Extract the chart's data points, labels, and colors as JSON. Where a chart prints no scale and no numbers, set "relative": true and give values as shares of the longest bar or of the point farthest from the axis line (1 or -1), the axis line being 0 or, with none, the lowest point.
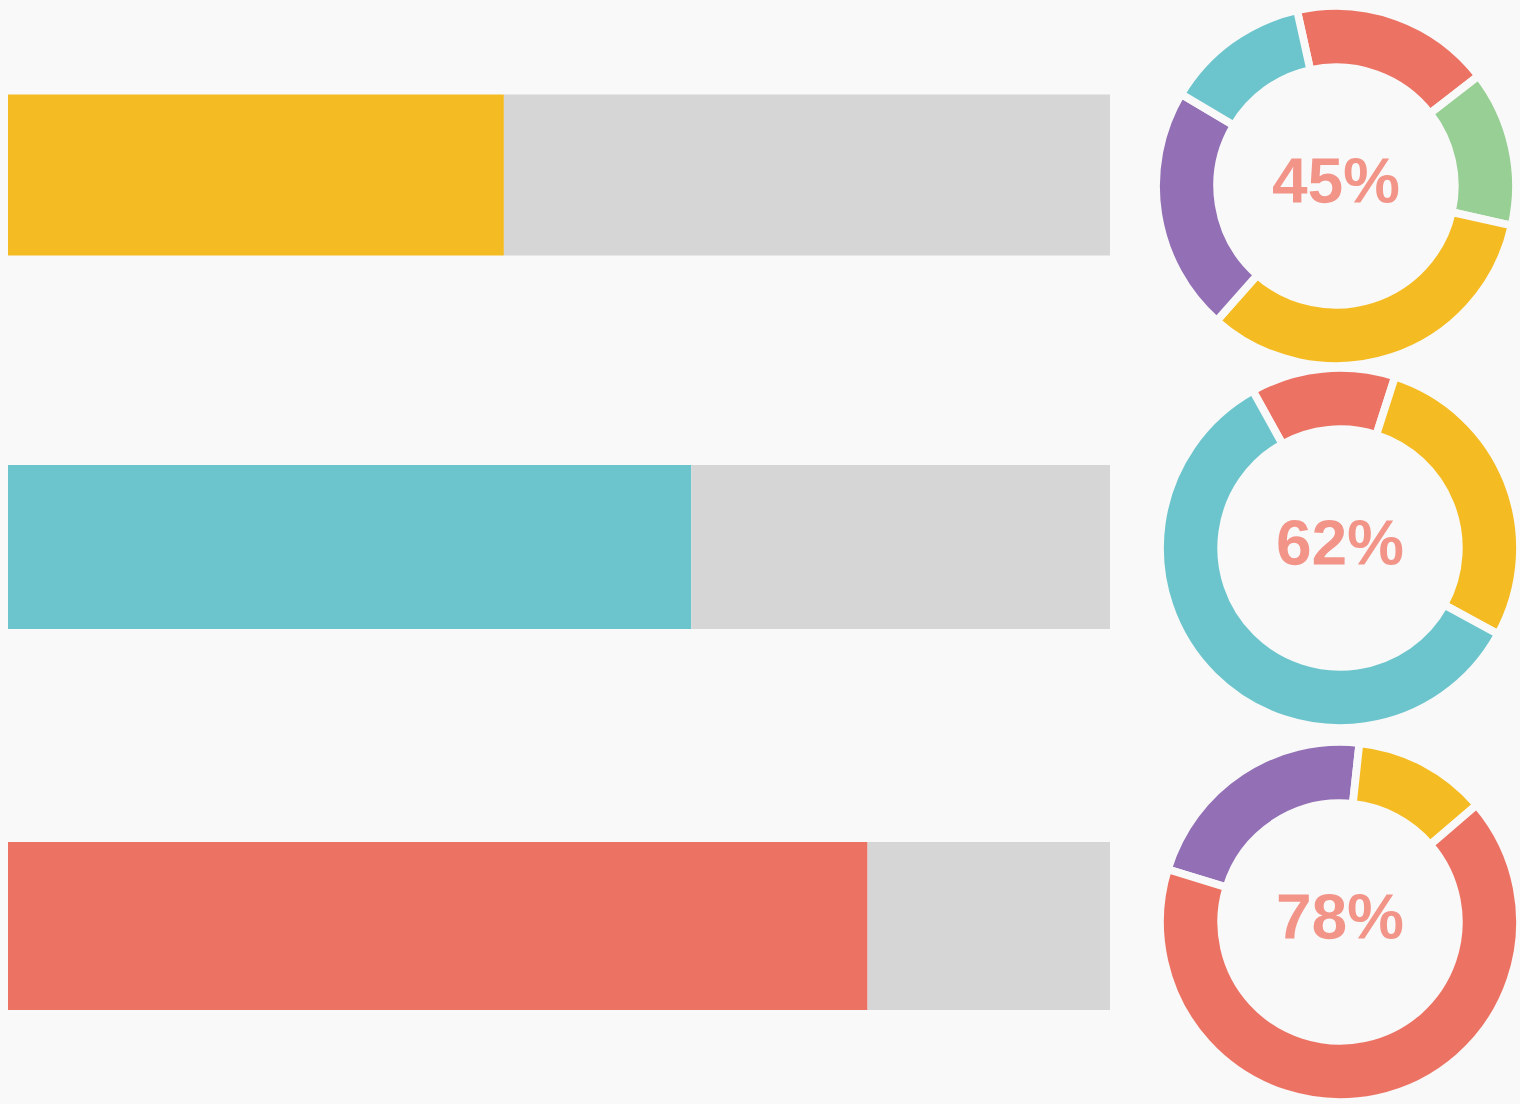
{
  "chart_data": [
    {
      "type": "bar",
      "orientation": "horizontal",
      "stacked": true,
      "relative": true,
      "tick_labels": false,
      "categories": [
        null
      ],
      "series": [
        {
          "color": "#f5bb22",
          "values": [
            0.45
          ]
        },
        {
          "color": "#d6d6d6",
          "values": [
            0.55
          ]
        }
      ]
    },
    {
      "type": "donut",
      "categories": [
        null,
        null,
        null,
        null,
        null
      ],
      "values": [
        18,
        14,
        33,
        22,
        13
      ],
      "colors": [
        "#ec7363",
        "#98cf94",
        "#f5bb22",
        "#9370b5",
        "#6cc5cc"
      ],
      "annotations": [
        "45%"
      ]
    },
    {
      "type": "bar",
      "orientation": "horizontal",
      "stacked": true,
      "relative": true,
      "tick_labels": false,
      "categories": [
        null
      ],
      "series": [
        {
          "color": "#6cc5cc",
          "values": [
            0.62
          ]
        },
        {
          "color": "#d6d6d6",
          "values": [
            0.38
          ]
        }
      ]
    },
    {
      "type": "donut",
      "categories": [
        null,
        null,
        null
      ],
      "values": [
        13,
        28,
        59
      ],
      "colors": [
        "#ec7363",
        "#f5bb22",
        "#6cc5cc"
      ],
      "annotations": [
        "62%"
      ]
    },
    {
      "type": "bar",
      "orientation": "horizontal",
      "stacked": true,
      "relative": true,
      "tick_labels": false,
      "categories": [
        null
      ],
      "series": [
        {
          "color": "#ec7363",
          "values": [
            0.78
          ]
        },
        {
          "color": "#d6d6d6",
          "values": [
            0.22
          ]
        }
      ]
    },
    {
      "type": "donut",
      "categories": [
        null,
        null,
        null
      ],
      "values": [
        22,
        12,
        66
      ],
      "colors": [
        "#9370b5",
        "#f5bb22",
        "#ec7363"
      ],
      "annotations": [
        "78%"
      ]
    }
  ]
}
